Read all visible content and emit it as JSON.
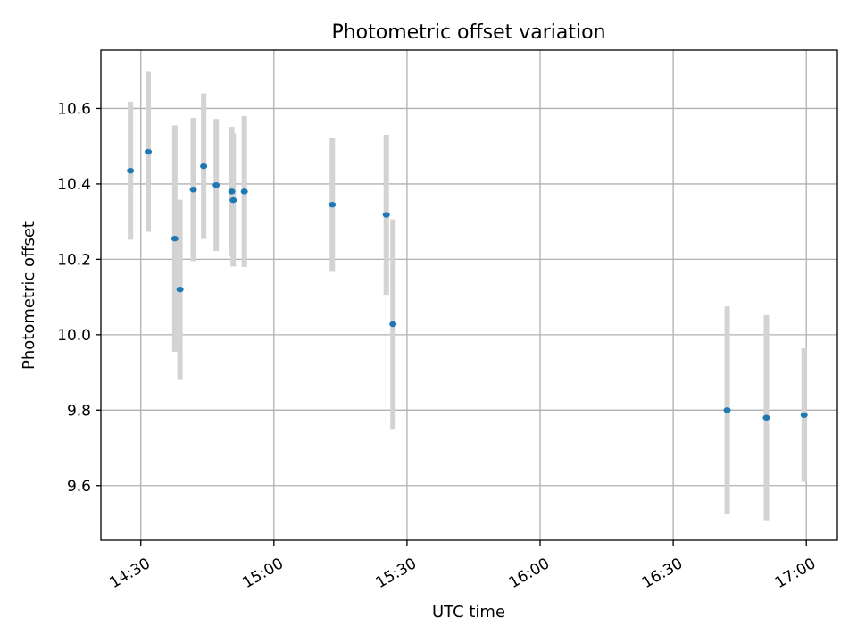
{
  "chart_data": {
    "type": "scatter",
    "title": "Photometric offset variation",
    "xlabel": "UTC time",
    "ylabel": "Photometric offset",
    "x_unit": "UTC time (HH:MM)",
    "xlim": [
      "14:21",
      "17:07"
    ],
    "ylim": [
      9.455,
      10.755
    ],
    "x_ticks": [
      "14:30",
      "15:00",
      "15:30",
      "16:00",
      "16:30",
      "17:00"
    ],
    "y_ticks": [
      "9.6",
      "9.8",
      "10.0",
      "10.2",
      "10.4",
      "10.6"
    ],
    "x_tick_rotation": 30,
    "grid": true,
    "legend": "none",
    "marker_color": "#1f77b4",
    "errorbar_color": "#d3d3d3",
    "series": [
      {
        "points": [
          {
            "x": "14:27:40",
            "y": 10.435,
            "yerr": 0.183
          },
          {
            "x": "14:31:40",
            "y": 10.485,
            "yerr": 0.212
          },
          {
            "x": "14:37:40",
            "y": 10.255,
            "yerr": 0.3
          },
          {
            "x": "14:38:50",
            "y": 10.12,
            "yerr": 0.238
          },
          {
            "x": "14:41:50",
            "y": 10.385,
            "yerr": 0.19
          },
          {
            "x": "14:44:10",
            "y": 10.447,
            "yerr": 0.193
          },
          {
            "x": "14:47:00",
            "y": 10.397,
            "yerr": 0.175
          },
          {
            "x": "14:50:30",
            "y": 10.38,
            "yerr": 0.171
          },
          {
            "x": "14:50:50",
            "y": 10.357,
            "yerr": 0.176
          },
          {
            "x": "14:53:20",
            "y": 10.38,
            "yerr": 0.2
          },
          {
            "x": "15:13:10",
            "y": 10.345,
            "yerr": 0.178
          },
          {
            "x": "15:25:20",
            "y": 10.318,
            "yerr": 0.212
          },
          {
            "x": "15:26:50",
            "y": 10.028,
            "yerr": 0.278
          },
          {
            "x": "16:42:10",
            "y": 9.8,
            "yerr": 0.275
          },
          {
            "x": "16:51:00",
            "y": 9.78,
            "yerr": 0.272
          },
          {
            "x": "16:59:30",
            "y": 9.787,
            "yerr": 0.177
          }
        ]
      }
    ]
  }
}
